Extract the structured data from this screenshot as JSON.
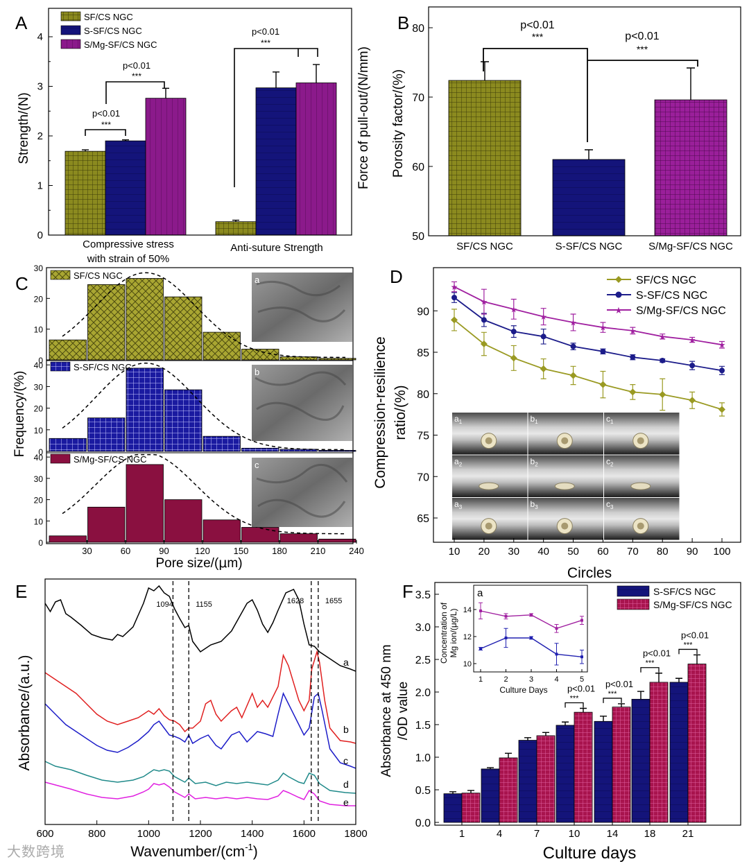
{
  "colors": {
    "olive": "#8b8a1f",
    "navy": "#14147a",
    "purple": "#8b1a8b",
    "maroon": "#8a1040",
    "red": "#e02020",
    "blue": "#1c1cc8",
    "teal": "#208a8a",
    "magenta": "#e020e0",
    "black": "#000000"
  },
  "panels": {
    "A": {
      "letter": "A",
      "ylabel": "Strength/(N)",
      "ylabel2": "Force of pull-out/(N/mm)",
      "legend": [
        "SF/CS NGC",
        "S-SF/CS NGC",
        "S/Mg-SF/CS NGC"
      ],
      "group1_label_line1": "Compressive stress",
      "group1_label_line2": "with strain of 50%",
      "group2_label": "Anti-suture Strength",
      "yticks": [
        "0",
        "1",
        "2",
        "3",
        "4"
      ],
      "sig": [
        "p<0.01",
        "***"
      ]
    },
    "B": {
      "letter": "B",
      "ylabel": "Porosity factor/(%)",
      "categories": [
        "SF/CS NGC",
        "S-SF/CS NGC",
        "S/Mg-SF/CS NGC"
      ],
      "yticks": [
        "50",
        "60",
        "70",
        "80"
      ],
      "sig": [
        "p<0.01",
        "***"
      ]
    },
    "C": {
      "letter": "C",
      "ylabel": "Frequency/(%)",
      "xlabel_main": "Pore size/(",
      "xlabel_mu": "μ",
      "xlabel_end": "m)",
      "xticks": [
        "30",
        "60",
        "90",
        "120",
        "150",
        "180",
        "210",
        "240"
      ],
      "sub_titles": [
        "SF/CS NGC",
        "S-SF/CS NGC",
        "S/Mg-SF/CS NGC"
      ],
      "sub_labels": [
        "a",
        "b",
        "c"
      ],
      "yticks_top": [
        "0",
        "10",
        "20",
        "30"
      ],
      "yticks_mid": [
        "0",
        "10",
        "20",
        "30",
        "40"
      ],
      "yticks_bot": [
        "0",
        "10",
        "20",
        "30",
        "40"
      ]
    },
    "D": {
      "letter": "D",
      "ylabel_line1": "Compression-resilience",
      "ylabel_line2": "ratio/(%)",
      "xlabel": "Circles",
      "legend": [
        "SF/CS NGC",
        "S-SF/CS NGC",
        "S/Mg-SF/CS NGC"
      ],
      "xticks": [
        "10",
        "20",
        "30",
        "40",
        "50",
        "60",
        "70",
        "80",
        "90",
        "100"
      ],
      "yticks": [
        "65",
        "70",
        "75",
        "80",
        "85",
        "90"
      ],
      "photo_labels": [
        [
          "a",
          "1"
        ],
        [
          "b",
          "1"
        ],
        [
          "c",
          "1"
        ],
        [
          "a",
          "2"
        ],
        [
          "b",
          "2"
        ],
        [
          "c",
          "2"
        ],
        [
          "a",
          "3"
        ],
        [
          "b",
          "3"
        ],
        [
          "c",
          "3"
        ]
      ]
    },
    "E": {
      "letter": "E",
      "ylabel": "Absorbance/(a.u.)",
      "xlabel_main": "Wavenumber/(cm",
      "xlabel_sup": "-1",
      "xlabel_end": ")",
      "xticks": [
        "600",
        "800",
        "1000",
        "1200",
        "1400",
        "1600",
        "1800"
      ],
      "peak_labels": [
        "1094",
        "1155",
        "1628",
        "1655"
      ],
      "curve_labels": [
        "a",
        "b",
        "c",
        "d",
        "e"
      ]
    },
    "F": {
      "letter": "F",
      "ylabel_line1": "Absorbance at 450 nm",
      "ylabel_line2": "/OD value",
      "xlabel": "Culture   days",
      "legend": [
        "S-SF/CS NGC",
        "S/Mg-SF/CS NGC"
      ],
      "yticks": [
        "0.0",
        "0.5",
        "1.0",
        "1.5",
        "2.0",
        "2.5",
        "3.0",
        "3.5"
      ],
      "sig": [
        "p<0.01",
        "***"
      ],
      "inset": {
        "label": "a",
        "ylabel_line1": "Concentration of",
        "ylabel_line2": "Mg ion/(μg/L)",
        "xlabel": "Culture  Days",
        "xticks": [
          "1",
          "2",
          "3",
          "4",
          "5"
        ],
        "yticks": [
          "10",
          "12",
          "14"
        ]
      }
    }
  },
  "watermark": "大数跨境",
  "chart_data": [
    {
      "panel": "A",
      "type": "bar",
      "title": "",
      "ylabel": "Strength/(N)",
      "ylim": [
        0,
        4.5
      ],
      "categories": [
        "Compressive stress with strain of 50%",
        "Anti-suture Strength"
      ],
      "series": [
        {
          "name": "SF/CS NGC",
          "values": [
            1.69,
            0.27
          ],
          "errors": [
            0.03,
            0.03
          ]
        },
        {
          "name": "S-SF/CS NGC",
          "values": [
            1.9,
            2.97
          ],
          "errors": [
            0.02,
            0.32
          ]
        },
        {
          "name": "S/Mg-SF/CS NGC",
          "values": [
            2.76,
            3.07
          ],
          "errors": [
            0.2,
            0.37
          ]
        }
      ],
      "legend": "top-left"
    },
    {
      "panel": "B",
      "type": "bar",
      "title": "",
      "ylabel": "Porosity factor/(%)",
      "ylim": [
        50,
        82
      ],
      "categories": [
        "SF/CS NGC",
        "S-SF/CS NGC",
        "S/Mg-SF/CS NGC"
      ],
      "values": [
        72.4,
        61.0,
        69.6
      ],
      "errors": [
        2.7,
        1.4,
        4.6
      ]
    },
    {
      "panel": "C",
      "type": "bar",
      "title": "",
      "xlabel": "Pore size/(μm)",
      "ylabel": "Frequency/(%)",
      "categories": [
        "15",
        "45",
        "75",
        "105",
        "135",
        "165",
        "195",
        "225"
      ],
      "series": [
        {
          "name": "SF/CS NGC",
          "values": [
            6.5,
            24.5,
            26.5,
            20.5,
            9,
            3.5,
            1,
            0.5
          ],
          "ylim": [
            0,
            30
          ]
        },
        {
          "name": "S-SF/CS NGC",
          "values": [
            6,
            15.5,
            38.5,
            28.5,
            7,
            1.5,
            1,
            0.5
          ],
          "ylim": [
            0,
            42
          ]
        },
        {
          "name": "S/Mg-SF/CS NGC",
          "values": [
            3,
            16.5,
            36.5,
            20,
            10.5,
            7,
            4,
            1.5
          ],
          "ylim": [
            0,
            42
          ]
        }
      ]
    },
    {
      "panel": "D",
      "type": "line",
      "title": "",
      "xlabel": "Circles",
      "ylabel": "Compression-resilience ratio/(%)",
      "xlim": [
        5,
        105
      ],
      "ylim": [
        62,
        95
      ],
      "x": [
        10,
        20,
        30,
        40,
        50,
        60,
        70,
        80,
        90,
        100
      ],
      "series": [
        {
          "name": "SF/CS NGC",
          "values": [
            88.9,
            86.0,
            84.3,
            83.0,
            82.2,
            81.1,
            80.2,
            79.9,
            79.2,
            78.1
          ],
          "errors": [
            1.3,
            1.4,
            1.5,
            1.2,
            1.1,
            1.6,
            0.9,
            1.9,
            1.0,
            0.8
          ]
        },
        {
          "name": "S-SF/CS NGC",
          "values": [
            91.6,
            88.9,
            87.5,
            86.9,
            85.7,
            85.1,
            84.4,
            84.0,
            83.4,
            82.8
          ],
          "errors": [
            0.6,
            0.8,
            0.7,
            0.9,
            0.4,
            0.3,
            0.3,
            0.2,
            0.5,
            0.5
          ]
        },
        {
          "name": "S/Mg-SF/CS NGC",
          "values": [
            92.9,
            91.1,
            90.2,
            89.3,
            88.6,
            88.0,
            87.6,
            86.9,
            86.5,
            85.9
          ],
          "errors": [
            0.6,
            1.5,
            1.2,
            1.0,
            1.0,
            0.6,
            0.4,
            0.3,
            0.3,
            0.4
          ]
        }
      ],
      "legend": "top-right"
    },
    {
      "panel": "E",
      "type": "line",
      "title": "",
      "xlabel": "Wavenumber/(cm-1)",
      "ylabel": "Absorbance/(a.u.)",
      "xlim": [
        600,
        1800
      ],
      "series": [
        {
          "name": "a"
        },
        {
          "name": "b"
        },
        {
          "name": "c"
        },
        {
          "name": "d"
        },
        {
          "name": "e"
        }
      ],
      "annotations": [
        1094,
        1155,
        1628,
        1655
      ]
    },
    {
      "panel": "F",
      "type": "bar",
      "title": "",
      "xlabel": "Culture days",
      "ylabel": "Absorbance at 450 nm /OD value",
      "ylim": [
        0,
        3.7
      ],
      "categories": [
        "1",
        "4",
        "7",
        "10",
        "14",
        "18",
        "21"
      ],
      "series": [
        {
          "name": "S-SF/CS NGC",
          "values": [
            0.44,
            0.82,
            1.26,
            1.49,
            1.55,
            1.89,
            2.15
          ],
          "errors": [
            0.03,
            0.02,
            0.04,
            0.05,
            0.08,
            0.12,
            0.06
          ]
        },
        {
          "name": "S/Mg-SF/CS NGC",
          "values": [
            0.45,
            0.99,
            1.33,
            1.69,
            1.77,
            2.15,
            2.43
          ],
          "errors": [
            0.04,
            0.07,
            0.05,
            0.06,
            0.05,
            0.14,
            0.14
          ]
        }
      ],
      "legend": "top-right"
    },
    {
      "panel": "F-inset",
      "type": "line",
      "title": "",
      "xlabel": "Culture Days",
      "ylabel": "Concentration of Mg ion/(μg/L)",
      "xlim": [
        0.8,
        5.3
      ],
      "ylim": [
        9.5,
        14.6
      ],
      "x": [
        1,
        2,
        3,
        4,
        5
      ],
      "series": [
        {
          "name": "S/Mg-SF/CS NGC",
          "values": [
            13.9,
            13.5,
            13.6,
            12.6,
            13.2
          ],
          "errors": [
            0.6,
            0.2,
            0.1,
            0.3,
            0.3
          ]
        },
        {
          "name": "S-SF/CS NGC",
          "values": [
            11.1,
            11.9,
            11.9,
            10.7,
            10.5
          ],
          "errors": [
            0.1,
            0.7,
            0.1,
            0.8,
            0.5
          ]
        }
      ]
    }
  ]
}
